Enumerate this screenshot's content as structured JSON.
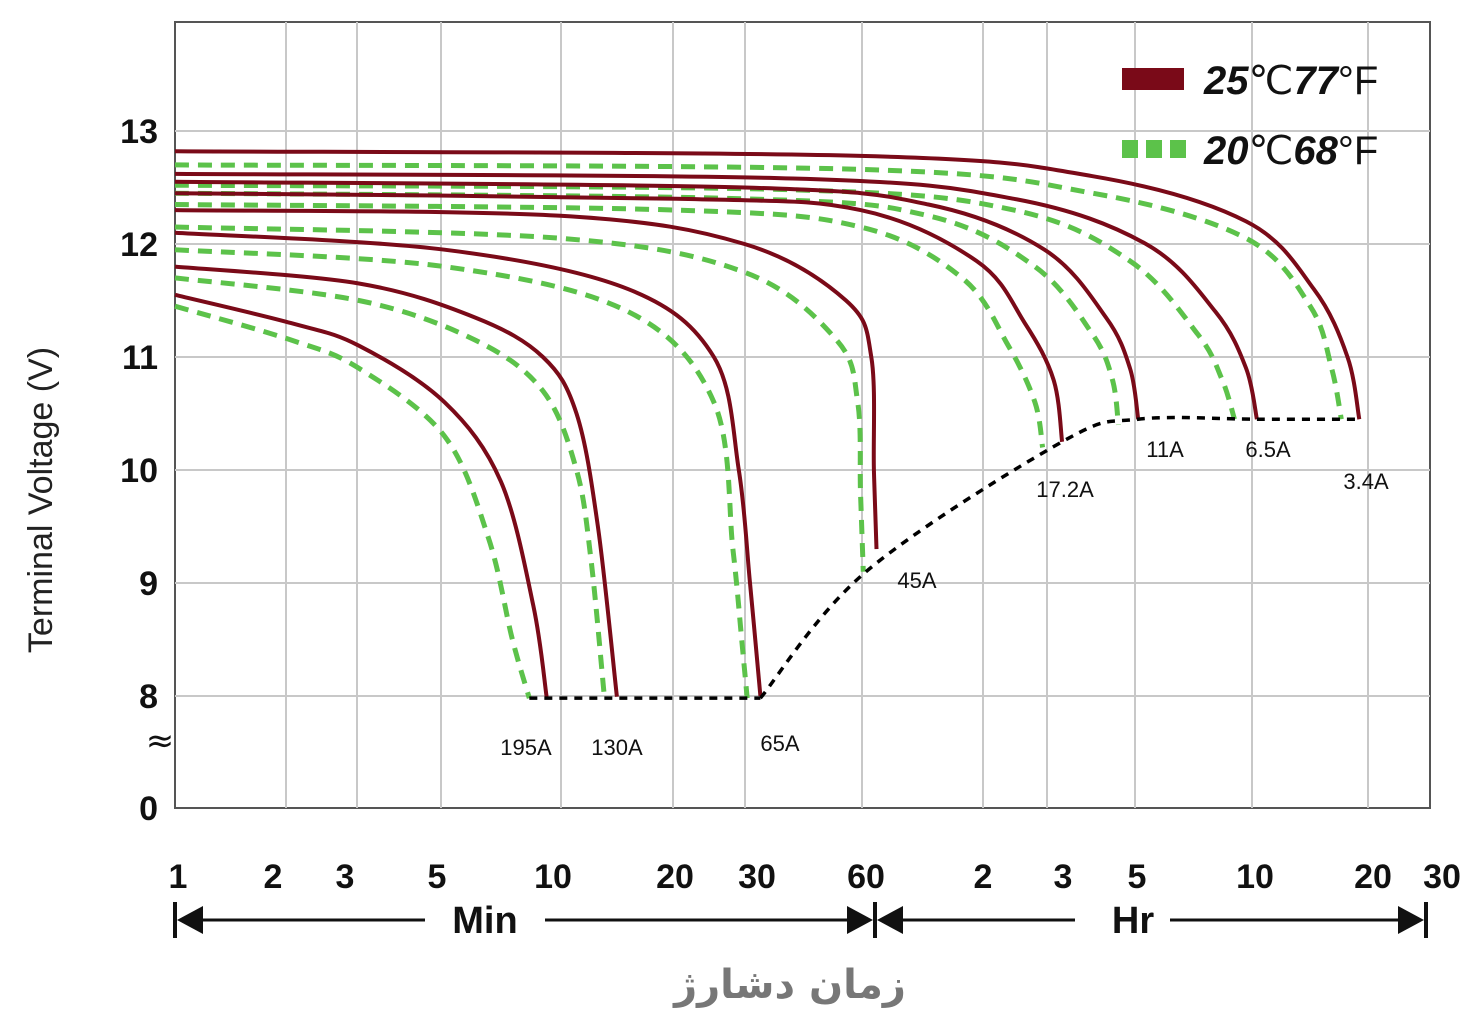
{
  "chart_data": {
    "type": "line",
    "title": "",
    "ylabel": "Terminal Voltage (V)",
    "xlabel": "زمان دشارژ",
    "x_scale": "log",
    "x_unit_groups": [
      {
        "label": "Min",
        "ticks": [
          "1",
          "2",
          "3",
          "5",
          "10",
          "20",
          "30",
          "60"
        ]
      },
      {
        "label": "Hr",
        "ticks": [
          "2",
          "3",
          "5",
          "10",
          "20",
          "30"
        ]
      }
    ],
    "y_ticks": [
      "0",
      "8",
      "9",
      "10",
      "11",
      "12",
      "13"
    ],
    "y_break_symbol": "≈",
    "legend": {
      "placement": "top-right",
      "entries": [
        {
          "key": "25C",
          "num1": "25",
          "unit1": "℃",
          "num2": "77",
          "unit2": "°F",
          "color": "#7a0a18",
          "style": "solid"
        },
        {
          "key": "20C",
          "num1": "20",
          "unit1": "℃",
          "num2": "68",
          "unit2": "°F",
          "color": "#5cc24a",
          "style": "dashed"
        }
      ]
    },
    "cutoff_line": {
      "color": "#000000",
      "style": "dotted"
    },
    "series": [
      {
        "label": "195A",
        "points_25C": [
          [
            1,
            11.55
          ],
          [
            2,
            11.3
          ],
          [
            3,
            11.1
          ],
          [
            5,
            10.6
          ],
          [
            7,
            9.9
          ],
          [
            8.5,
            8.8
          ],
          [
            9.2,
            7.95
          ]
        ],
        "points_20C": [
          [
            1,
            11.45
          ],
          [
            2,
            11.15
          ],
          [
            3,
            10.9
          ],
          [
            5,
            10.3
          ],
          [
            6.5,
            9.4
          ],
          [
            7.5,
            8.5
          ],
          [
            8.3,
            7.85
          ]
        ]
      },
      {
        "label": "130A",
        "points_25C": [
          [
            1,
            11.8
          ],
          [
            3,
            11.65
          ],
          [
            6,
            11.35
          ],
          [
            9,
            11.0
          ],
          [
            11,
            10.5
          ],
          [
            12.5,
            9.5
          ],
          [
            14,
            7.95
          ]
        ],
        "points_20C": [
          [
            1,
            11.7
          ],
          [
            3,
            11.5
          ],
          [
            6,
            11.15
          ],
          [
            9,
            10.7
          ],
          [
            11,
            10.0
          ],
          [
            12,
            9.2
          ],
          [
            13,
            7.85
          ]
        ]
      },
      {
        "label": "65A",
        "points_25C": [
          [
            1,
            12.1
          ],
          [
            5,
            11.95
          ],
          [
            15,
            11.6
          ],
          [
            25,
            11.0
          ],
          [
            29,
            10.0
          ],
          [
            31,
            9.0
          ],
          [
            33,
            8.0
          ]
        ],
        "points_20C": [
          [
            1,
            11.95
          ],
          [
            5,
            11.8
          ],
          [
            15,
            11.4
          ],
          [
            25,
            10.6
          ],
          [
            28,
            9.3
          ],
          [
            29.5,
            8.5
          ],
          [
            30.5,
            7.85
          ]
        ]
      },
      {
        "label": "45A",
        "points_25C": [
          [
            1,
            12.3
          ],
          [
            10,
            12.25
          ],
          [
            30,
            12.0
          ],
          [
            55,
            11.5
          ],
          [
            64,
            11.0
          ],
          [
            65,
            10.0
          ],
          [
            66,
            9.3
          ]
        ],
        "points_20C": [
          [
            1,
            12.15
          ],
          [
            10,
            12.05
          ],
          [
            30,
            11.75
          ],
          [
            52,
            11.15
          ],
          [
            59,
            10.6
          ],
          [
            60,
            9.8
          ],
          [
            61,
            9.1
          ]
        ]
      },
      {
        "label": "17.2A",
        "points_25C": [
          [
            1,
            12.45
          ],
          [
            20,
            12.4
          ],
          [
            60,
            12.3
          ],
          [
            120,
            11.85
          ],
          [
            160,
            11.3
          ],
          [
            190,
            10.8
          ],
          [
            200,
            10.25
          ]
        ],
        "points_20C": [
          [
            1,
            12.35
          ],
          [
            20,
            12.3
          ],
          [
            60,
            12.15
          ],
          [
            110,
            11.7
          ],
          [
            145,
            11.1
          ],
          [
            170,
            10.6
          ],
          [
            178,
            10.2
          ]
        ]
      },
      {
        "label": "11A",
        "points_25C": [
          [
            1,
            12.55
          ],
          [
            30,
            12.5
          ],
          [
            90,
            12.35
          ],
          [
            180,
            11.95
          ],
          [
            260,
            11.35
          ],
          [
            300,
            10.9
          ],
          [
            315,
            10.45
          ]
        ],
        "points_20C": [
          [
            1,
            12.45
          ],
          [
            30,
            12.4
          ],
          [
            90,
            12.25
          ],
          [
            170,
            11.8
          ],
          [
            240,
            11.2
          ],
          [
            270,
            10.8
          ],
          [
            280,
            10.4
          ]
        ]
      },
      {
        "label": "6.5A",
        "points_25C": [
          [
            1,
            12.62
          ],
          [
            40,
            12.58
          ],
          [
            150,
            12.4
          ],
          [
            330,
            12.0
          ],
          [
            500,
            11.4
          ],
          [
            600,
            10.9
          ],
          [
            640,
            10.45
          ]
        ],
        "points_20C": [
          [
            1,
            12.52
          ],
          [
            40,
            12.48
          ],
          [
            150,
            12.3
          ],
          [
            300,
            11.85
          ],
          [
            450,
            11.2
          ],
          [
            520,
            10.8
          ],
          [
            560,
            10.45
          ]
        ]
      },
      {
        "label": "3.4A",
        "points_25C": [
          [
            1,
            12.82
          ],
          [
            60,
            12.78
          ],
          [
            240,
            12.6
          ],
          [
            600,
            12.2
          ],
          [
            900,
            11.6
          ],
          [
            1100,
            11.0
          ],
          [
            1180,
            10.45
          ]
        ],
        "points_20C": [
          [
            1,
            12.7
          ],
          [
            60,
            12.66
          ],
          [
            240,
            12.45
          ],
          [
            600,
            12.05
          ],
          [
            880,
            11.45
          ],
          [
            1000,
            10.9
          ],
          [
            1060,
            10.45
          ]
        ]
      }
    ],
    "cutoff_points": [
      [
        8.3,
        7.85
      ],
      [
        33,
        7.85
      ],
      [
        62,
        9.1
      ],
      [
        200,
        10.25
      ],
      [
        315,
        10.45
      ],
      [
        640,
        10.45
      ],
      [
        1180,
        10.45
      ]
    ]
  }
}
